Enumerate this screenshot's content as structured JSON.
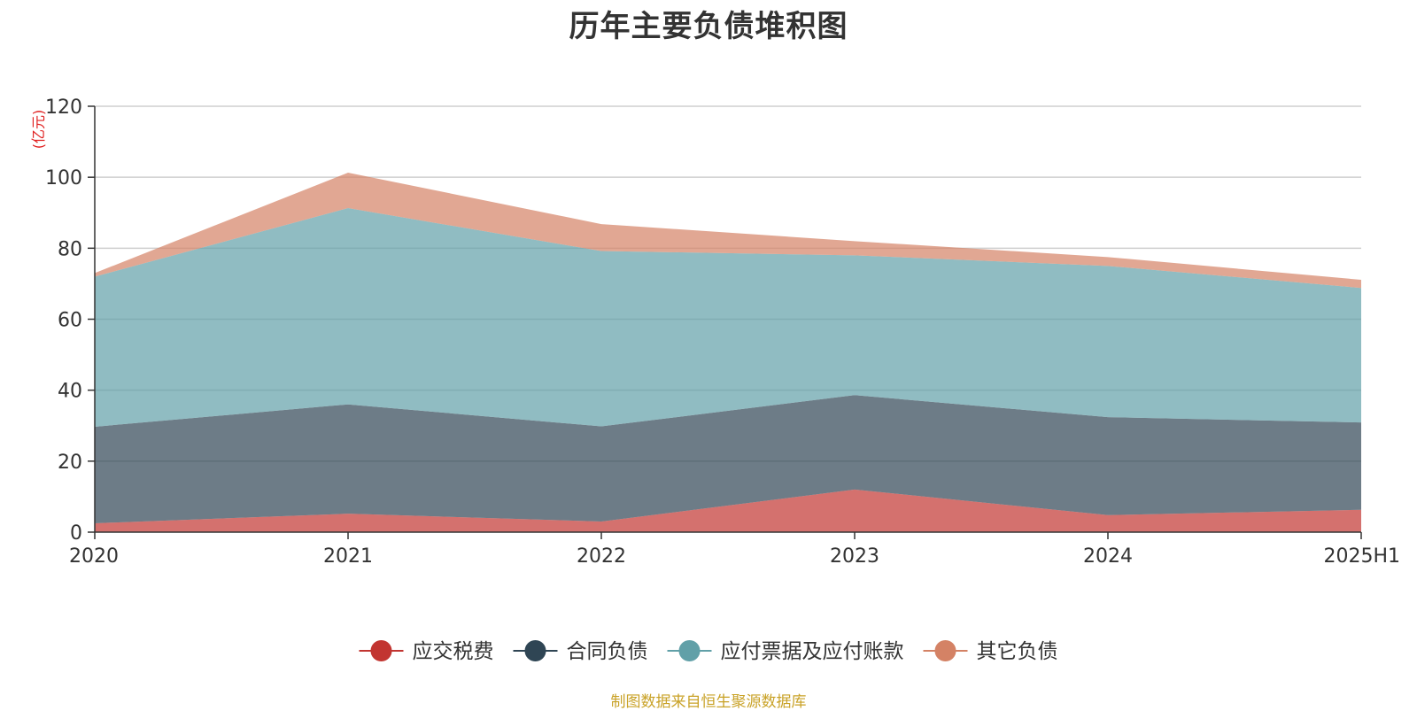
{
  "title": "历年主要负债堆积图",
  "footer": "制图数据来自恒生聚源数据库",
  "chart_data": {
    "type": "area",
    "stacked": true,
    "title": "历年主要负债堆积图",
    "ylabel": "(亿元)",
    "xlabel": "",
    "categories": [
      "2020",
      "2021",
      "2022",
      "2023",
      "2024",
      "2025H1"
    ],
    "ylim": [
      0,
      120
    ],
    "yticks": [
      0,
      20,
      40,
      60,
      80,
      100,
      120
    ],
    "grid": true,
    "legend_position": "bottom",
    "series": [
      {
        "name": "应交税费",
        "color": "#c23531",
        "values": [
          2.5,
          5.2,
          3.0,
          12.0,
          4.8,
          6.3
        ]
      },
      {
        "name": "合同负债",
        "color": "#2f4554",
        "values": [
          27.2,
          30.8,
          26.8,
          26.6,
          27.6,
          24.6
        ]
      },
      {
        "name": "应付票据及应付账款",
        "color": "#61a0a8",
        "values": [
          42.3,
          55.3,
          49.4,
          39.4,
          42.6,
          37.9
        ]
      },
      {
        "name": "其它负债",
        "color": "#d48265",
        "values": [
          1.0,
          10.0,
          7.6,
          4.0,
          2.5,
          2.3
        ]
      }
    ]
  }
}
